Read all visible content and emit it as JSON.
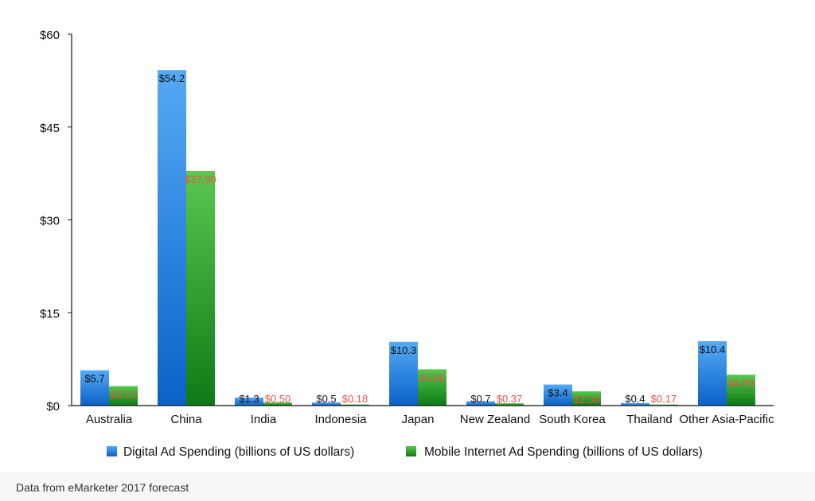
{
  "chart_data": {
    "type": "bar",
    "title": "",
    "xlabel": "",
    "ylabel": "",
    "ylim": [
      0,
      60
    ],
    "yticks": [
      0,
      15,
      30,
      45,
      60
    ],
    "ytick_labels": [
      "$0",
      "$15",
      "$30",
      "$45",
      "$60"
    ],
    "categories": [
      "Australia",
      "China",
      "India",
      "Indonesia",
      "Japan",
      "New Zealand",
      "South Korea",
      "Thailand",
      "Other Asia-Pacific"
    ],
    "series": [
      {
        "name": "Digital Ad Spending (billions of US dollars)",
        "values": [
          5.7,
          54.2,
          1.3,
          0.5,
          10.3,
          0.7,
          3.4,
          0.4,
          10.4
        ],
        "labels": [
          "$5.7",
          "$54.2",
          "$1.3",
          "$0.5",
          "$10.3",
          "$0.7",
          "$3.4",
          "$0.4",
          "$10.4"
        ],
        "color": "#2f8fe6",
        "label_color": "#111111"
      },
      {
        "name": "Mobile Internet Ad Spending (billions of US dollars)",
        "values": [
          3.15,
          37.9,
          0.5,
          0.18,
          5.86,
          0.37,
          2.3,
          0.17,
          4.99
        ],
        "labels": [
          "$3.15",
          "$37.90",
          "$0.50",
          "$0.18",
          "$5.86",
          "$0.37",
          "$2.30",
          "$0.17",
          "$4.99"
        ],
        "color": "#2ea82e",
        "label_color": "#e8524a"
      }
    ],
    "legend_position": "bottom",
    "grid": false
  },
  "footnote": "Data from eMarketer 2017 forecast"
}
